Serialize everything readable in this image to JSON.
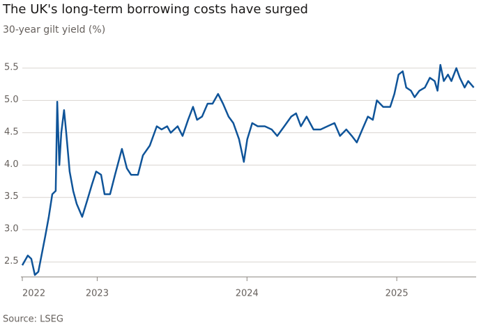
{
  "chart_data": {
    "type": "line",
    "title": "The UK's long-term borrowing costs have surged",
    "subtitle": "30-year gilt yield (%)",
    "source": "Source: LSEG",
    "x": [
      2022.5,
      2022.537,
      2022.56,
      2022.584,
      2022.607,
      2022.653,
      2022.677,
      2022.7,
      2022.723,
      2022.733,
      2022.747,
      2022.76,
      2022.779,
      2022.793,
      2022.816,
      2022.84,
      2022.863,
      2022.9,
      2022.933,
      2022.965,
      2022.993,
      2023.026,
      2023.049,
      2023.086,
      2023.119,
      2023.165,
      2023.198,
      2023.226,
      2023.272,
      2023.305,
      2023.351,
      2023.398,
      2023.43,
      2023.467,
      2023.491,
      2023.537,
      2023.57,
      2023.607,
      2023.64,
      2023.667,
      2023.7,
      2023.737,
      2023.77,
      2023.807,
      2023.84,
      2023.877,
      2023.909,
      2023.947,
      2023.979,
      2024.002,
      2024.035,
      2024.072,
      2024.119,
      2024.165,
      2024.202,
      2024.249,
      2024.295,
      2024.328,
      2024.36,
      2024.398,
      2024.444,
      2024.491,
      2024.537,
      2024.584,
      2024.621,
      2024.663,
      2024.7,
      2024.733,
      2024.77,
      2024.807,
      2024.84,
      2024.867,
      2024.909,
      2024.956,
      2024.984,
      2025.012,
      2025.04,
      2025.063,
      2025.095,
      2025.119,
      2025.151,
      2025.188,
      2025.221,
      2025.253,
      2025.272,
      2025.291,
      2025.314,
      2025.342,
      2025.365,
      2025.398,
      2025.421,
      2025.453,
      2025.477,
      2025.514
    ],
    "series": [
      {
        "name": "30-year gilt yield",
        "color": "#0f5499",
        "values": [
          2.45,
          2.6,
          2.55,
          2.3,
          2.35,
          2.9,
          3.2,
          3.55,
          3.6,
          4.98,
          4.0,
          4.5,
          4.85,
          4.5,
          3.9,
          3.6,
          3.4,
          3.2,
          3.45,
          3.7,
          3.9,
          3.85,
          3.55,
          3.55,
          3.85,
          4.25,
          3.95,
          3.85,
          3.85,
          4.15,
          4.3,
          4.6,
          4.55,
          4.6,
          4.5,
          4.6,
          4.45,
          4.7,
          4.9,
          4.7,
          4.75,
          4.95,
          4.95,
          5.1,
          4.95,
          4.75,
          4.65,
          4.4,
          4.05,
          4.4,
          4.65,
          4.6,
          4.6,
          4.55,
          4.45,
          4.6,
          4.75,
          4.8,
          4.6,
          4.75,
          4.55,
          4.55,
          4.6,
          4.65,
          4.45,
          4.55,
          4.45,
          4.35,
          4.55,
          4.75,
          4.7,
          5.0,
          4.9,
          4.9,
          5.1,
          5.4,
          5.45,
          5.2,
          5.15,
          5.05,
          5.15,
          5.2,
          5.35,
          5.3,
          5.15,
          5.55,
          5.3,
          5.4,
          5.3,
          5.5,
          5.35,
          5.2,
          5.3,
          5.2
        ]
      }
    ],
    "xlim": [
      2022.5,
      2025.53
    ],
    "xticks": [
      {
        "value": 2022.5,
        "label": "2022"
      },
      2023,
      2024,
      2025
    ],
    "ylim": [
      2.27,
      5.8
    ],
    "yticks": [
      {
        "value": 2.5,
        "label": "2.5"
      },
      {
        "value": 3.0,
        "label": "3.0"
      },
      {
        "value": 3.5,
        "label": "3.5"
      },
      {
        "value": 4.0,
        "label": "4.0"
      },
      {
        "value": 4.5,
        "label": "4.5"
      },
      {
        "value": 5.0,
        "label": "5.0"
      },
      {
        "value": 5.5,
        "label": "5.5"
      }
    ],
    "grid": true
  }
}
